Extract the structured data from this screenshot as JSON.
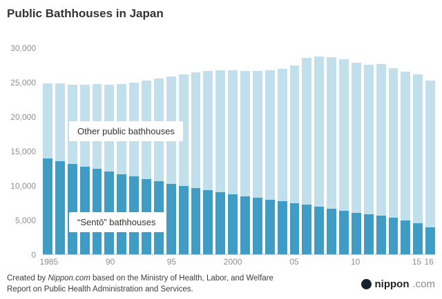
{
  "title": "Public Bathhouses in Japan",
  "labels": {
    "other": "Other public bathhouses",
    "sento": "“Sentō” bathhouses"
  },
  "footer": {
    "line1_pre": "Created by ",
    "line1_italic": "Nippon.com",
    "line1_post": " based on the Ministry of Health, Labor, and Welfare",
    "line2": "Report on Public Health Administration and Services."
  },
  "logo": {
    "icon": "nippon-circle-icon",
    "name": "nippon",
    "suffix": ".com"
  },
  "chart_data": {
    "type": "bar",
    "stacked": true,
    "title": "Public Bathhouses in Japan",
    "xlabel": "",
    "ylabel": "",
    "ylim": [
      0,
      30000
    ],
    "grid": false,
    "legend_position": "inside-plot-labels",
    "categories": [
      1985,
      1986,
      1987,
      1988,
      1989,
      1990,
      1991,
      1992,
      1993,
      1994,
      1995,
      1996,
      1997,
      1998,
      1999,
      2000,
      2001,
      2002,
      2003,
      2004,
      2005,
      2006,
      2007,
      2008,
      2009,
      2010,
      2011,
      2012,
      2013,
      2014,
      2015,
      2016
    ],
    "series": [
      {
        "name": "“Sentō” bathhouses",
        "values": [
          13900,
          13500,
          13100,
          12700,
          12400,
          12000,
          11600,
          11300,
          10900,
          10600,
          10200,
          9900,
          9600,
          9300,
          9000,
          8700,
          8400,
          8200,
          7900,
          7700,
          7400,
          7200,
          6900,
          6600,
          6300,
          6000,
          5800,
          5600,
          5300,
          4900,
          4500,
          3900
        ]
      },
      {
        "name": "Other public bathhouses",
        "values": [
          11000,
          11350,
          11600,
          12000,
          12350,
          12700,
          13200,
          13700,
          14400,
          15000,
          15700,
          16300,
          16900,
          17400,
          17800,
          18100,
          18300,
          18500,
          18900,
          19300,
          20100,
          21400,
          21900,
          22100,
          22100,
          21900,
          21800,
          22100,
          21800,
          21700,
          21700,
          21400
        ]
      }
    ],
    "colors": {
      "sento": "#3f9cc4",
      "other": "#c1e0ec"
    },
    "yticks": [
      {
        "label": "0",
        "value": 0
      },
      {
        "label": "5,000",
        "value": 5000
      },
      {
        "label": "10,000",
        "value": 10000
      },
      {
        "label": "15,000",
        "value": 15000
      },
      {
        "label": "20,000",
        "value": 20000
      },
      {
        "label": "25,000",
        "value": 25000
      },
      {
        "label": "30,000",
        "value": 30000
      }
    ],
    "xticks": [
      {
        "label": "1985",
        "index": 0
      },
      {
        "label": "90",
        "index": 5
      },
      {
        "label": "95",
        "index": 10
      },
      {
        "label": "2000",
        "index": 15
      },
      {
        "label": "05",
        "index": 20
      },
      {
        "label": "10",
        "index": 25
      },
      {
        "label": "15",
        "index": 30
      },
      {
        "label": "16",
        "index": 31
      }
    ]
  }
}
